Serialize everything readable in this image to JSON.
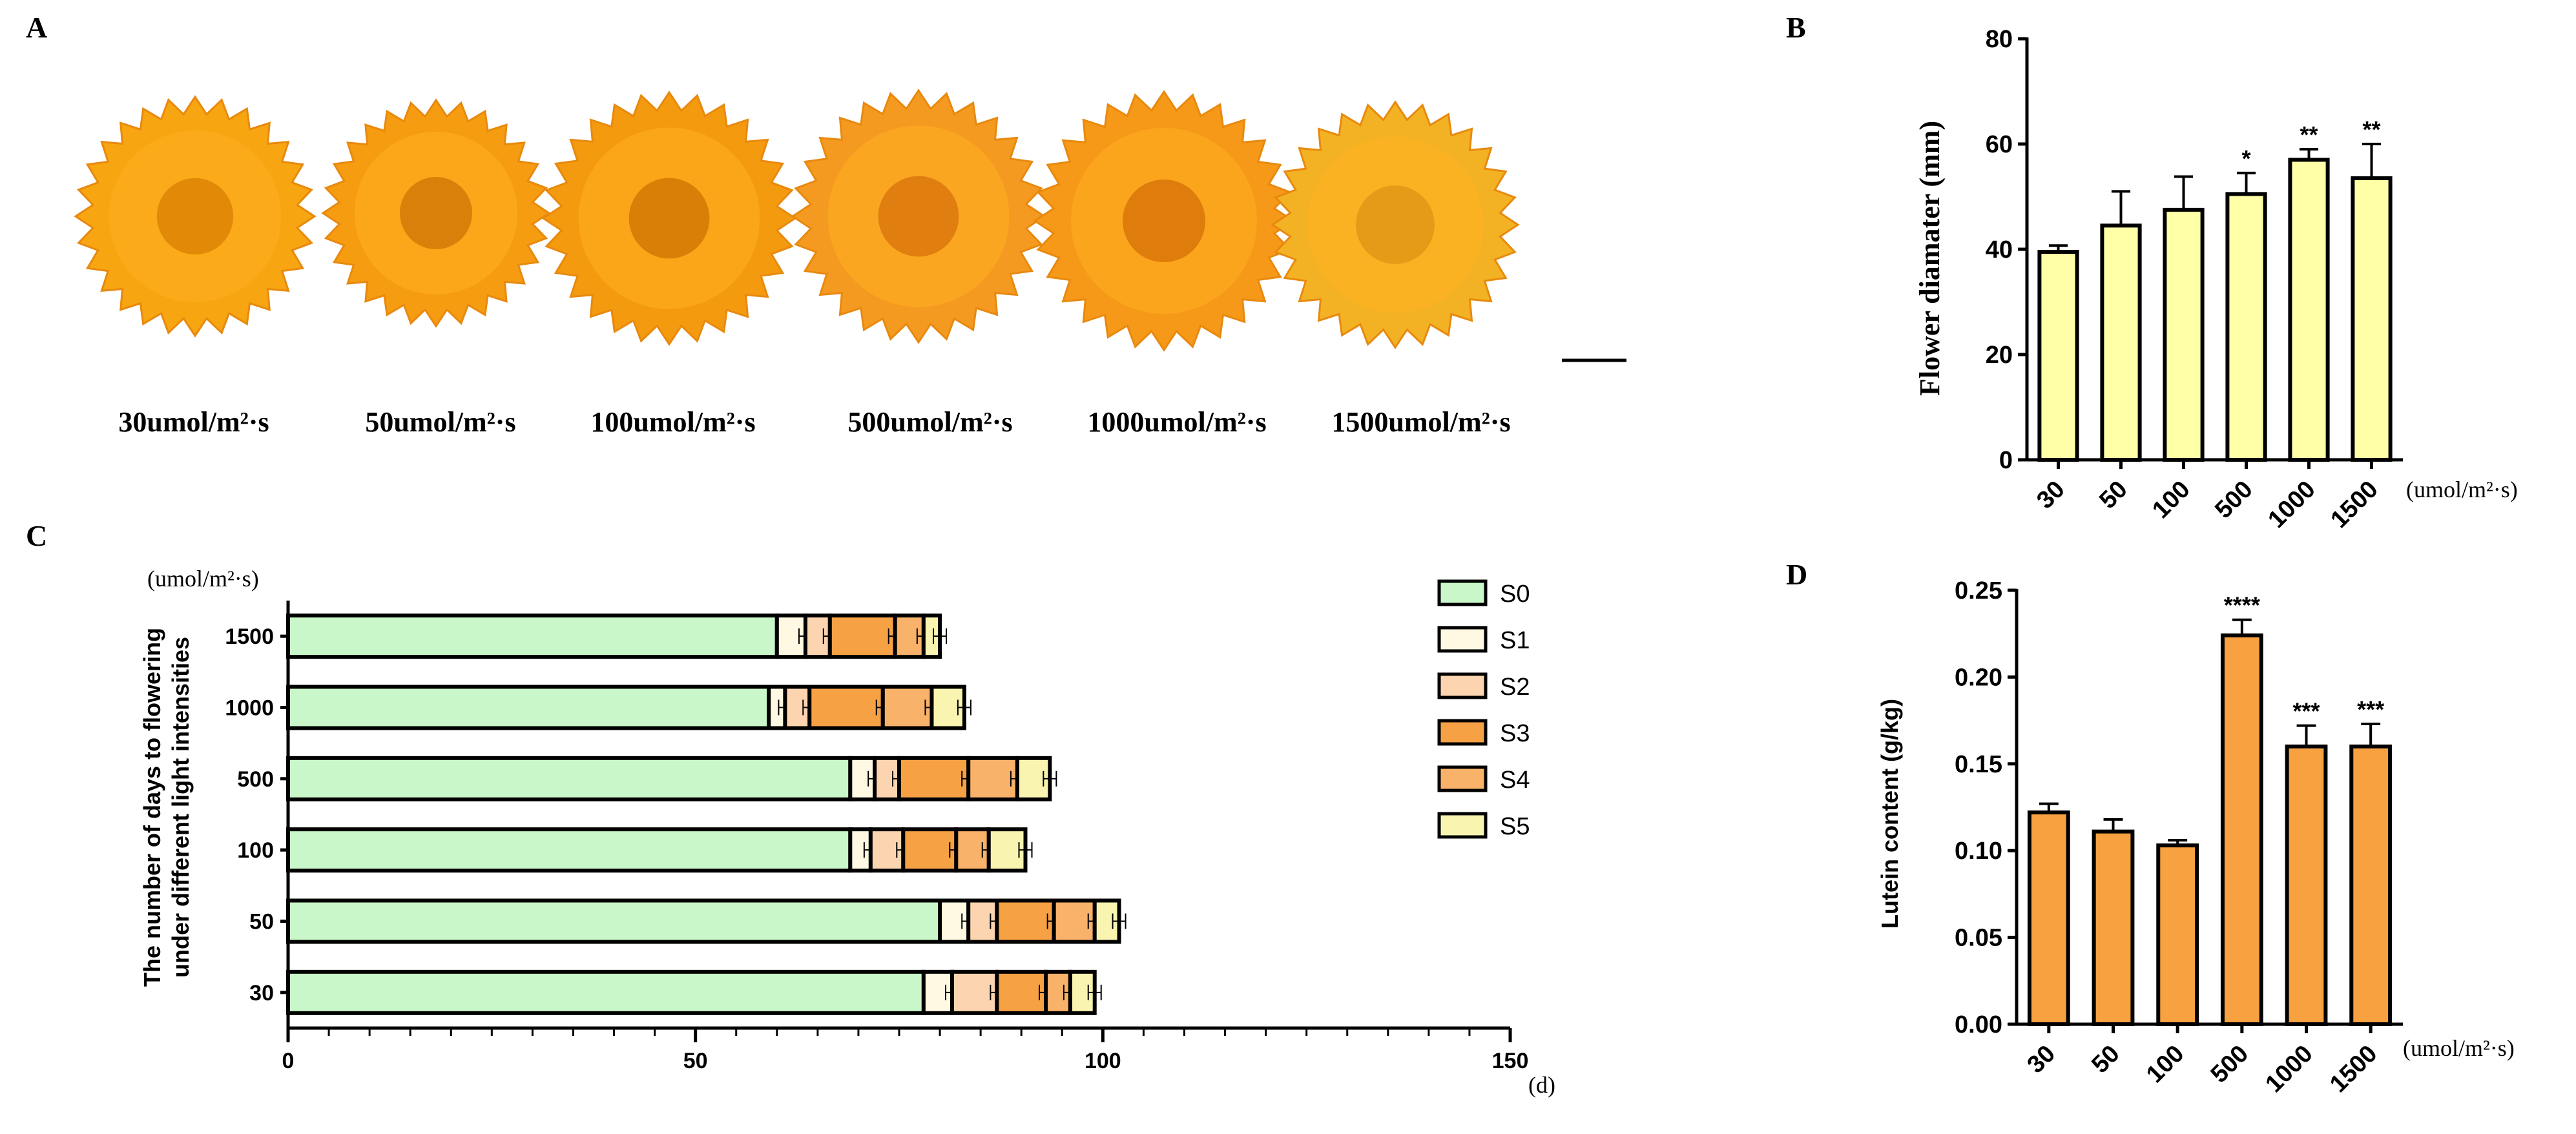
{
  "colors": {
    "yellow_bar": "#ffffa8",
    "orange_bar": "#f7a140",
    "s0": "#c9f7c9",
    "s1": "#fff8e2",
    "s2": "#fcd5b0",
    "s3": "#f7a145",
    "s4": "#f9b26a",
    "s5": "#f9f5b0",
    "flower_dark": "#e8890e",
    "flower_light": "#ffb020"
  },
  "panel_a": {
    "letter": "A",
    "flowers": [
      {
        "label": "30umol/m²·s",
        "color": "#f7a510",
        "center": "#e28a08"
      },
      {
        "label": "50umol/m²·s",
        "color": "#f69c10",
        "center": "#d9800a"
      },
      {
        "label": "100umol/m²·s",
        "color": "#f49a0e",
        "center": "#d97f08"
      },
      {
        "label": "500umol/m²·s",
        "color": "#f59a20",
        "center": "#e07f10"
      },
      {
        "label": "1000umol/m²·s",
        "color": "#f69818",
        "center": "#de7c0c"
      },
      {
        "label": "1500umol/m²·s",
        "color": "#f3b224",
        "center": "#e59a18"
      }
    ]
  },
  "chart_data": [
    {
      "id": "B",
      "type": "bar",
      "letter": "B",
      "ylabel": "Flower diamater (mm)",
      "xlabel_unit": "(umol/m²·s)",
      "categories": [
        "30",
        "50",
        "100",
        "500",
        "1000",
        "1500"
      ],
      "values": [
        39.5,
        44.5,
        47.5,
        50.5,
        57,
        53.5
      ],
      "errors": [
        1.2,
        6.5,
        6.3,
        4.0,
        2.0,
        6.5
      ],
      "significance": [
        "",
        "",
        "",
        "*",
        "**",
        "**"
      ],
      "ylim": [
        0,
        80
      ],
      "yticks": [
        "0",
        "20",
        "40",
        "60",
        "80"
      ]
    },
    {
      "id": "C",
      "type": "bar",
      "orientation": "horizontal-stacked",
      "letter": "C",
      "ylabel_line1": "The number of days to flowering",
      "ylabel_line2": "under different light intensities",
      "ylabel_unit": "(umol/m²·s)",
      "xlabel_unit": "(d)",
      "categories": [
        "1500",
        "1000",
        "500",
        "100",
        "50",
        "30"
      ],
      "stage_names": [
        "S0",
        "S1",
        "S2",
        "S3",
        "S4",
        "S5"
      ],
      "segments": [
        [
          60,
          3.5,
          3,
          8,
          3.5,
          2
        ],
        [
          59,
          2,
          3,
          9,
          6,
          4
        ],
        [
          69,
          3,
          3,
          8.5,
          6,
          4
        ],
        [
          69,
          2.5,
          4,
          6.5,
          4,
          4.5
        ],
        [
          80,
          3.5,
          3.5,
          7,
          5,
          3
        ],
        [
          78,
          3.5,
          5.5,
          6,
          3,
          3
        ]
      ],
      "totals": [
        81,
        83,
        93.5,
        90.5,
        102,
        99
      ],
      "xlim": [
        0,
        150
      ],
      "xticks": [
        "0",
        "50",
        "100",
        "150"
      ]
    },
    {
      "id": "D",
      "type": "bar",
      "letter": "D",
      "ylabel": "Lutein content (g/kg)",
      "xlabel_unit": "(umol/m²·s)",
      "categories": [
        "30",
        "50",
        "100",
        "500",
        "1000",
        "1500"
      ],
      "values": [
        0.122,
        0.111,
        0.103,
        0.224,
        0.16,
        0.16
      ],
      "errors": [
        0.005,
        0.007,
        0.003,
        0.009,
        0.012,
        0.013
      ],
      "significance": [
        "",
        "",
        "",
        "****",
        "***",
        "***"
      ],
      "ylim": [
        0,
        0.25
      ],
      "yticks": [
        "0.00",
        "0.05",
        "0.10",
        "0.15",
        "0.20",
        "0.25"
      ]
    }
  ]
}
